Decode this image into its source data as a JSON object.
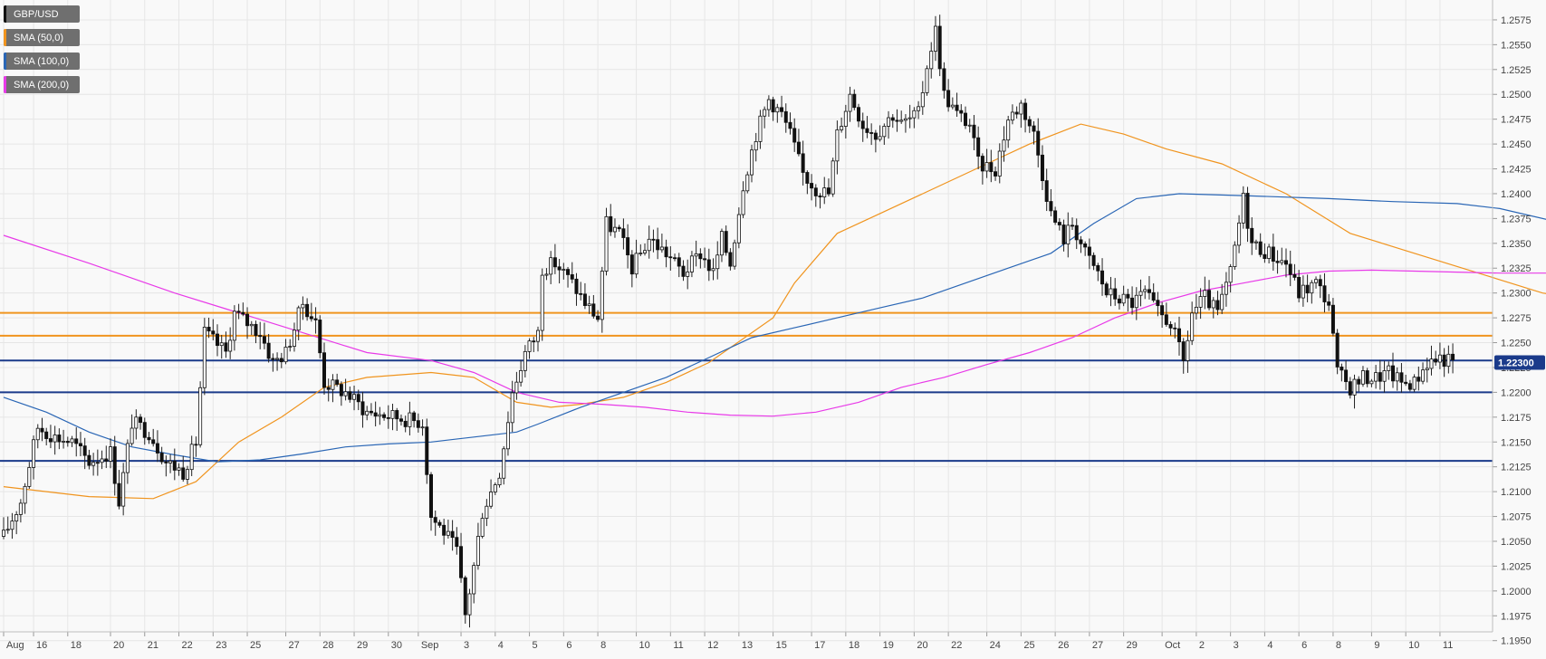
{
  "chart_data": {
    "type": "candlestick",
    "title": "",
    "ylim": [
      1.194,
      1.2595
    ],
    "grid": true,
    "legend": {
      "placement": "top-left",
      "items": [
        {
          "label": "GBP/USD",
          "color": "#111111"
        },
        {
          "label": "SMA (50,0)",
          "color": "#f0941e"
        },
        {
          "label": "SMA (100,0)",
          "color": "#2a66b5"
        },
        {
          "label": "SMA (200,0)",
          "color": "#e83ae8"
        }
      ]
    },
    "y_ticks": [
      "1.1950",
      "1.1975",
      "1.2000",
      "1.2025",
      "1.2050",
      "1.2075",
      "1.2100",
      "1.2125",
      "1.2150",
      "1.2175",
      "1.2200",
      "1.2225",
      "1.2250",
      "1.2275",
      "1.2300",
      "1.2325",
      "1.2350",
      "1.2375",
      "1.2400",
      "1.2425",
      "1.2450",
      "1.2475",
      "1.2500",
      "1.2525",
      "1.2550",
      "1.2575"
    ],
    "x_ticks": [
      {
        "label": "Aug",
        "index": 0
      },
      {
        "label": "16",
        "index": 7
      },
      {
        "label": "18",
        "index": 15
      },
      {
        "label": "20",
        "index": 25
      },
      {
        "label": "21",
        "index": 33
      },
      {
        "label": "22",
        "index": 41
      },
      {
        "label": "23",
        "index": 49
      },
      {
        "label": "25",
        "index": 57
      },
      {
        "label": "27",
        "index": 66
      },
      {
        "label": "28",
        "index": 74
      },
      {
        "label": "29",
        "index": 82
      },
      {
        "label": "30",
        "index": 90
      },
      {
        "label": "Sep",
        "index": 97
      },
      {
        "label": "3",
        "index": 107
      },
      {
        "label": "4",
        "index": 115
      },
      {
        "label": "5",
        "index": 123
      },
      {
        "label": "6",
        "index": 131
      },
      {
        "label": "8",
        "index": 139
      },
      {
        "label": "10",
        "index": 148
      },
      {
        "label": "11",
        "index": 156
      },
      {
        "label": "12",
        "index": 164
      },
      {
        "label": "13",
        "index": 172
      },
      {
        "label": "15",
        "index": 180
      },
      {
        "label": "17",
        "index": 189
      },
      {
        "label": "18",
        "index": 197
      },
      {
        "label": "19",
        "index": 205
      },
      {
        "label": "20",
        "index": 213
      },
      {
        "label": "22",
        "index": 221
      },
      {
        "label": "24",
        "index": 230
      },
      {
        "label": "25",
        "index": 238
      },
      {
        "label": "26",
        "index": 246
      },
      {
        "label": "27",
        "index": 254
      },
      {
        "label": "29",
        "index": 262
      },
      {
        "label": "Oct",
        "index": 271
      },
      {
        "label": "2",
        "index": 279
      },
      {
        "label": "3",
        "index": 287
      },
      {
        "label": "4",
        "index": 295
      },
      {
        "label": "6",
        "index": 303
      },
      {
        "label": "8",
        "index": 311
      },
      {
        "label": "9",
        "index": 320
      },
      {
        "label": "10",
        "index": 328
      },
      {
        "label": "11",
        "index": 336
      }
    ],
    "candle_count": 340,
    "price_anchors": [
      [
        0,
        1.2055
      ],
      [
        4,
        1.209
      ],
      [
        8,
        1.2165
      ],
      [
        12,
        1.2155
      ],
      [
        16,
        1.215
      ],
      [
        20,
        1.213
      ],
      [
        25,
        1.214
      ],
      [
        27,
        1.209
      ],
      [
        30,
        1.217
      ],
      [
        34,
        1.216
      ],
      [
        38,
        1.213
      ],
      [
        42,
        1.212
      ],
      [
        45,
        1.215
      ],
      [
        47,
        1.226
      ],
      [
        52,
        1.224
      ],
      [
        54,
        1.228
      ],
      [
        57,
        1.227
      ],
      [
        60,
        1.226
      ],
      [
        63,
        1.223
      ],
      [
        66,
        1.224
      ],
      [
        70,
        1.229
      ],
      [
        73,
        1.227
      ],
      [
        75,
        1.221
      ],
      [
        80,
        1.22
      ],
      [
        85,
        1.218
      ],
      [
        92,
        1.2175
      ],
      [
        98,
        1.217
      ],
      [
        100,
        1.2075
      ],
      [
        103,
        1.206
      ],
      [
        106,
        1.204
      ],
      [
        108,
        1.1975
      ],
      [
        110,
        1.2025
      ],
      [
        112,
        1.208
      ],
      [
        116,
        1.212
      ],
      [
        119,
        1.22
      ],
      [
        122,
        1.224
      ],
      [
        125,
        1.226
      ],
      [
        126,
        1.2325
      ],
      [
        129,
        1.233
      ],
      [
        133,
        1.231
      ],
      [
        136,
        1.229
      ],
      [
        139,
        1.2275
      ],
      [
        141,
        1.237
      ],
      [
        144,
        1.236
      ],
      [
        147,
        1.2325
      ],
      [
        151,
        1.2355
      ],
      [
        155,
        1.234
      ],
      [
        159,
        1.232
      ],
      [
        163,
        1.234
      ],
      [
        166,
        1.232
      ],
      [
        168,
        1.2355
      ],
      [
        170,
        1.233
      ],
      [
        173,
        1.241
      ],
      [
        176,
        1.246
      ],
      [
        179,
        1.2495
      ],
      [
        182,
        1.248
      ],
      [
        184,
        1.246
      ],
      [
        187,
        1.242
      ],
      [
        190,
        1.2405
      ],
      [
        193,
        1.24
      ],
      [
        195,
        1.246
      ],
      [
        198,
        1.25
      ],
      [
        201,
        1.247
      ],
      [
        204,
        1.246
      ],
      [
        208,
        1.248
      ],
      [
        210,
        1.247
      ],
      [
        214,
        1.248
      ],
      [
        216,
        1.253
      ],
      [
        218,
        1.2565
      ],
      [
        220,
        1.25
      ],
      [
        223,
        1.248
      ],
      [
        226,
        1.247
      ],
      [
        228,
        1.243
      ],
      [
        232,
        1.2425
      ],
      [
        235,
        1.2475
      ],
      [
        238,
        1.249
      ],
      [
        241,
        1.246
      ],
      [
        243,
        1.242
      ],
      [
        245,
        1.238
      ],
      [
        248,
        1.2355
      ],
      [
        250,
        1.237
      ],
      [
        253,
        1.234
      ],
      [
        256,
        1.232
      ],
      [
        258,
        1.23
      ],
      [
        261,
        1.2295
      ],
      [
        264,
        1.229
      ],
      [
        267,
        1.23
      ],
      [
        270,
        1.228
      ],
      [
        273,
        1.227
      ],
      [
        276,
        1.223
      ],
      [
        278,
        1.228
      ],
      [
        281,
        1.2295
      ],
      [
        284,
        1.228
      ],
      [
        287,
        1.232
      ],
      [
        290,
        1.2395
      ],
      [
        292,
        1.235
      ],
      [
        296,
        1.234
      ],
      [
        300,
        1.233
      ],
      [
        303,
        1.23
      ],
      [
        307,
        1.231
      ],
      [
        310,
        1.229
      ],
      [
        312,
        1.222
      ],
      [
        315,
        1.2205
      ],
      [
        318,
        1.2215
      ],
      [
        321,
        1.2215
      ],
      [
        324,
        1.222
      ],
      [
        327,
        1.221
      ],
      [
        330,
        1.221
      ],
      [
        333,
        1.223
      ],
      [
        336,
        1.2235
      ],
      [
        339,
        1.223
      ]
    ],
    "series": [
      {
        "name": "SMA (50,0)",
        "color": "#f0941e",
        "points": [
          [
            0,
            1.2105
          ],
          [
            20,
            1.2095
          ],
          [
            35,
            1.2093
          ],
          [
            45,
            1.211
          ],
          [
            55,
            1.215
          ],
          [
            65,
            1.2175
          ],
          [
            75,
            1.2205
          ],
          [
            85,
            1.2215
          ],
          [
            100,
            1.222
          ],
          [
            110,
            1.2215
          ],
          [
            120,
            1.219
          ],
          [
            128,
            1.2185
          ],
          [
            135,
            1.2188
          ],
          [
            145,
            1.2195
          ],
          [
            155,
            1.221
          ],
          [
            165,
            1.223
          ],
          [
            175,
            1.226
          ],
          [
            180,
            1.2275
          ],
          [
            185,
            1.231
          ],
          [
            195,
            1.236
          ],
          [
            205,
            1.238
          ],
          [
            215,
            1.24
          ],
          [
            225,
            1.242
          ],
          [
            240,
            1.245
          ],
          [
            252,
            1.247
          ],
          [
            262,
            1.246
          ],
          [
            272,
            1.2445
          ],
          [
            285,
            1.243
          ],
          [
            300,
            1.24
          ],
          [
            315,
            1.236
          ],
          [
            330,
            1.234
          ],
          [
            345,
            1.232
          ],
          [
            360,
            1.23
          ],
          [
            375,
            1.229
          ],
          [
            385,
            1.2283
          ]
        ]
      },
      {
        "name": "SMA (100,0)",
        "color": "#2a66b5",
        "points": [
          [
            0,
            1.2195
          ],
          [
            10,
            1.218
          ],
          [
            20,
            1.216
          ],
          [
            30,
            1.2145
          ],
          [
            40,
            1.2137
          ],
          [
            50,
            1.213
          ],
          [
            60,
            1.2132
          ],
          [
            70,
            1.2138
          ],
          [
            80,
            1.2145
          ],
          [
            90,
            1.2148
          ],
          [
            100,
            1.215
          ],
          [
            110,
            1.2155
          ],
          [
            120,
            1.216
          ],
          [
            125,
            1.2168
          ],
          [
            135,
            1.2185
          ],
          [
            145,
            1.22
          ],
          [
            155,
            1.2215
          ],
          [
            165,
            1.2235
          ],
          [
            175,
            1.2255
          ],
          [
            185,
            1.2265
          ],
          [
            195,
            1.2275
          ],
          [
            205,
            1.2285
          ],
          [
            215,
            1.2295
          ],
          [
            225,
            1.231
          ],
          [
            235,
            1.2325
          ],
          [
            245,
            1.234
          ],
          [
            255,
            1.237
          ],
          [
            265,
            1.2395
          ],
          [
            275,
            1.24
          ],
          [
            290,
            1.2398
          ],
          [
            310,
            1.2395
          ],
          [
            325,
            1.2392
          ],
          [
            340,
            1.239
          ],
          [
            350,
            1.2385
          ],
          [
            365,
            1.237
          ],
          [
            380,
            1.2355
          ],
          [
            385,
            1.2348
          ]
        ]
      },
      {
        "name": "SMA (200,0)",
        "color": "#e83ae8",
        "points": [
          [
            0,
            1.2358
          ],
          [
            20,
            1.233
          ],
          [
            40,
            1.23
          ],
          [
            55,
            1.228
          ],
          [
            70,
            1.226
          ],
          [
            85,
            1.224
          ],
          [
            100,
            1.2232
          ],
          [
            110,
            1.222
          ],
          [
            120,
            1.22
          ],
          [
            130,
            1.219
          ],
          [
            140,
            1.2188
          ],
          [
            150,
            1.2185
          ],
          [
            160,
            1.218
          ],
          [
            170,
            1.2177
          ],
          [
            180,
            1.2176
          ],
          [
            190,
            1.218
          ],
          [
            200,
            1.219
          ],
          [
            210,
            1.2205
          ],
          [
            220,
            1.2215
          ],
          [
            230,
            1.2228
          ],
          [
            240,
            1.224
          ],
          [
            250,
            1.2255
          ],
          [
            260,
            1.2275
          ],
          [
            270,
            1.229
          ],
          [
            280,
            1.2302
          ],
          [
            290,
            1.231
          ],
          [
            300,
            1.2318
          ],
          [
            310,
            1.2322
          ],
          [
            320,
            1.2323
          ],
          [
            330,
            1.2322
          ],
          [
            340,
            1.2321
          ],
          [
            350,
            1.232
          ],
          [
            370,
            1.232
          ],
          [
            385,
            1.232
          ]
        ]
      }
    ],
    "levels": [
      {
        "name": "resistance-1",
        "value": 1.228,
        "color": "#f0941e"
      },
      {
        "name": "resistance-2",
        "value": 1.2257,
        "color": "#f0941e"
      },
      {
        "name": "support-1",
        "value": 1.2232,
        "color": "#1a3a8a"
      },
      {
        "name": "support-2",
        "value": 1.22,
        "color": "#1a3a8a"
      },
      {
        "name": "support-3",
        "value": 1.2131,
        "color": "#1a3a8a"
      }
    ],
    "current_price": {
      "label": "1.22300",
      "value": 1.223,
      "color": "#1a3a8a"
    }
  }
}
